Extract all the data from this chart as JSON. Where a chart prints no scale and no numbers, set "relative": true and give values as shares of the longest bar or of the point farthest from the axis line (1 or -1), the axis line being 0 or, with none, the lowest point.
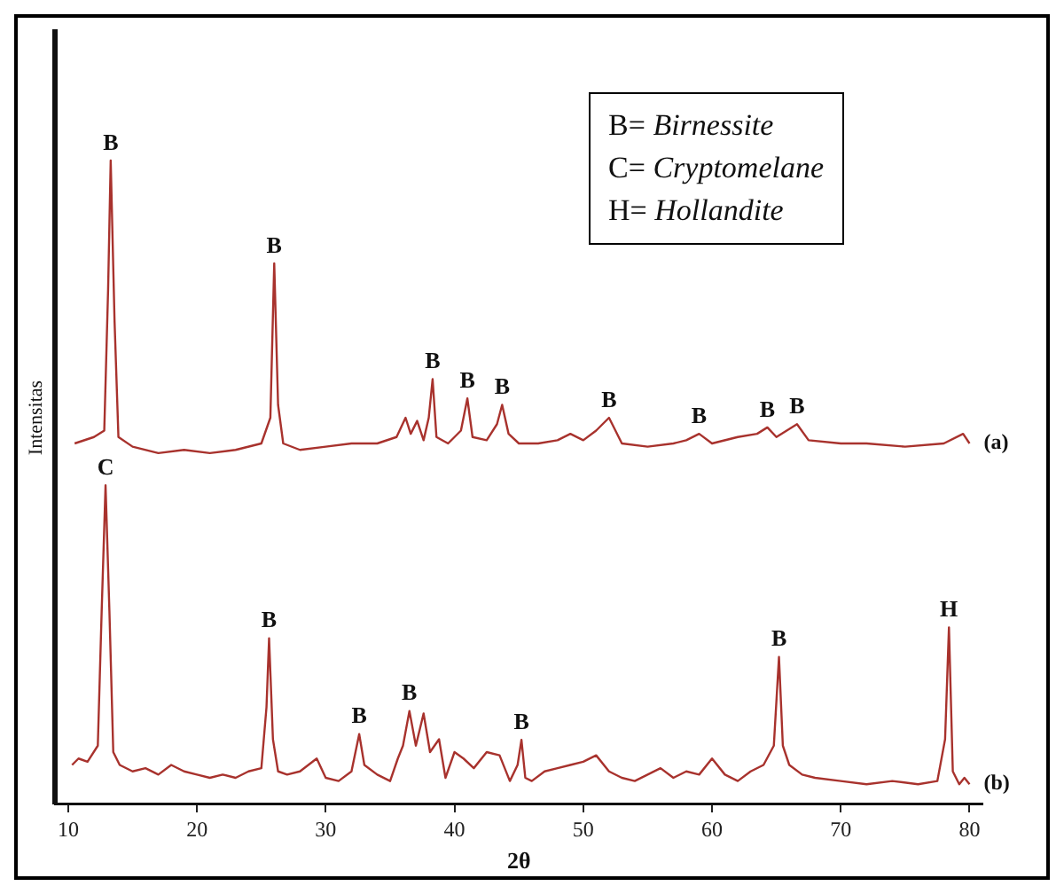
{
  "chart_data": {
    "type": "line",
    "relative": true,
    "xlabel": "2θ",
    "ylabel": "Intensitas",
    "xlim": [
      9,
      81
    ],
    "xticks": [
      10,
      20,
      30,
      40,
      50,
      60,
      70,
      80
    ],
    "grid": false,
    "legend": false,
    "marker": "none",
    "line_style": "solid",
    "series": [
      {
        "name": "(a)",
        "color": "#a8322d",
        "x": [
          10.5,
          12.0,
          12.8,
          13.1,
          13.3,
          13.6,
          13.9,
          15,
          17,
          19,
          21,
          23,
          25,
          25.7,
          26.0,
          26.3,
          26.7,
          28,
          30,
          32,
          34,
          35.5,
          36.2,
          36.6,
          37.1,
          37.6,
          38.0,
          38.3,
          38.6,
          39.5,
          40.5,
          41.0,
          41.4,
          42.5,
          43.3,
          43.7,
          44.2,
          45,
          46.5,
          48,
          49,
          50,
          51,
          52,
          53,
          55,
          57,
          58,
          59,
          60,
          62,
          63.5,
          64.3,
          65,
          66.6,
          67.5,
          70,
          72,
          75,
          78,
          79.5,
          80
        ],
        "values": [
          0.56,
          0.57,
          0.58,
          0.8,
          1.0,
          0.75,
          0.57,
          0.555,
          0.545,
          0.55,
          0.545,
          0.55,
          0.56,
          0.6,
          0.84,
          0.62,
          0.56,
          0.55,
          0.555,
          0.56,
          0.56,
          0.57,
          0.6,
          0.575,
          0.595,
          0.565,
          0.6,
          0.66,
          0.57,
          0.56,
          0.58,
          0.63,
          0.57,
          0.565,
          0.59,
          0.62,
          0.575,
          0.56,
          0.56,
          0.565,
          0.575,
          0.565,
          0.58,
          0.6,
          0.56,
          0.555,
          0.56,
          0.565,
          0.575,
          0.56,
          0.57,
          0.575,
          0.585,
          0.57,
          0.59,
          0.565,
          0.56,
          0.56,
          0.555,
          0.56,
          0.575,
          0.56
        ]
      },
      {
        "name": "(b)",
        "color": "#a8322d",
        "x": [
          10.3,
          10.8,
          11.5,
          12.3,
          12.6,
          12.9,
          13.2,
          13.5,
          14,
          15,
          16,
          17,
          18,
          19,
          20,
          21,
          22,
          23,
          24,
          25,
          25.4,
          25.6,
          25.9,
          26.3,
          27,
          28,
          29.3,
          30,
          31,
          32,
          32.6,
          33,
          34,
          35,
          35.6,
          36.0,
          36.5,
          37.0,
          37.6,
          38.1,
          38.8,
          39.3,
          40.0,
          40.7,
          41.5,
          42.5,
          43.5,
          44.3,
          44.9,
          45.2,
          45.5,
          46,
          47,
          48,
          49,
          50,
          51,
          52,
          53,
          54,
          55,
          56,
          57,
          58,
          59,
          60,
          61,
          62,
          63,
          64,
          64.8,
          65.2,
          65.5,
          66,
          67,
          68,
          70,
          72,
          74,
          76,
          77.5,
          78.1,
          78.4,
          78.7,
          79.2,
          79.6,
          80
        ],
        "values": [
          0.06,
          0.07,
          0.065,
          0.09,
          0.3,
          0.495,
          0.3,
          0.08,
          0.06,
          0.05,
          0.055,
          0.045,
          0.06,
          0.05,
          0.045,
          0.04,
          0.045,
          0.04,
          0.05,
          0.055,
          0.15,
          0.257,
          0.1,
          0.05,
          0.045,
          0.05,
          0.07,
          0.04,
          0.035,
          0.05,
          0.108,
          0.06,
          0.045,
          0.035,
          0.07,
          0.09,
          0.144,
          0.09,
          0.14,
          0.08,
          0.1,
          0.04,
          0.08,
          0.07,
          0.055,
          0.08,
          0.075,
          0.035,
          0.06,
          0.099,
          0.04,
          0.035,
          0.05,
          0.055,
          0.06,
          0.065,
          0.075,
          0.05,
          0.04,
          0.035,
          0.045,
          0.055,
          0.04,
          0.05,
          0.045,
          0.07,
          0.045,
          0.035,
          0.05,
          0.06,
          0.09,
          0.228,
          0.09,
          0.06,
          0.045,
          0.04,
          0.035,
          0.03,
          0.035,
          0.03,
          0.035,
          0.1,
          0.274,
          0.05,
          0.03,
          0.04,
          0.03
        ]
      }
    ],
    "annotations": [
      "B= Birnessite",
      "C= Cryptomelane",
      "H= Hollandite",
      {
        "text": "B",
        "x": 13.3,
        "y": 1.0
      },
      {
        "text": "B",
        "x": 26.0,
        "y": 0.84
      },
      {
        "text": "B",
        "x": 38.3,
        "y": 0.66
      },
      {
        "text": "B",
        "x": 41.0,
        "y": 0.63
      },
      {
        "text": "B",
        "x": 43.7,
        "y": 0.62
      },
      {
        "text": "B",
        "x": 52,
        "y": 0.6
      },
      {
        "text": "B",
        "x": 59,
        "y": 0.575
      },
      {
        "text": "B",
        "x": 64.3,
        "y": 0.585
      },
      {
        "text": "B",
        "x": 66.6,
        "y": 0.59
      },
      {
        "text": "C",
        "x": 12.9,
        "y": 0.495
      },
      {
        "text": "B",
        "x": 25.6,
        "y": 0.257
      },
      {
        "text": "B",
        "x": 32.6,
        "y": 0.108
      },
      {
        "text": "B",
        "x": 36.5,
        "y": 0.144
      },
      {
        "text": "B",
        "x": 45.2,
        "y": 0.099
      },
      {
        "text": "B",
        "x": 65.2,
        "y": 0.228
      },
      {
        "text": "H",
        "x": 78.4,
        "y": 0.274
      }
    ]
  }
}
